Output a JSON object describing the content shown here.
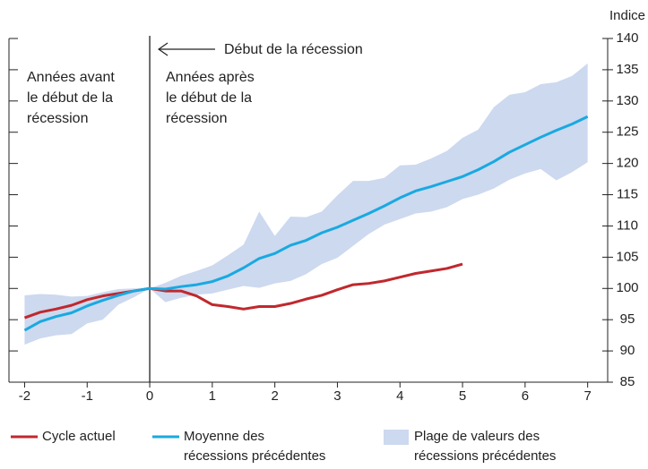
{
  "chart_data": {
    "type": "line",
    "y_label": "Indice",
    "annotations": [
      "Début de la récession",
      "Années avant\nle début de la\nrécession",
      "Années après\nle début de la\nrécession"
    ],
    "x": [
      -2,
      -1.75,
      -1.5,
      -1.25,
      -1,
      -0.75,
      -0.5,
      -0.25,
      0,
      0.25,
      0.5,
      0.75,
      1,
      1.25,
      1.5,
      1.75,
      2,
      2.25,
      2.5,
      2.75,
      3,
      3.25,
      3.5,
      3.75,
      4,
      4.25,
      4.5,
      4.75,
      5,
      5.25,
      5.5,
      5.75,
      6,
      6.25,
      6.5,
      6.75,
      7
    ],
    "series": [
      {
        "name": "Cycle actuel",
        "color": "#c0282d",
        "values": [
          95.3,
          96.2,
          96.7,
          97.3,
          98.2,
          98.8,
          99.2,
          99.6,
          100,
          99.6,
          99.6,
          98.8,
          97.4,
          97.1,
          96.7,
          97.1,
          97.1,
          97.6,
          98.3,
          98.9,
          99.8,
          100.6,
          100.8,
          101.2,
          101.8,
          102.4,
          102.8,
          103.2,
          103.9,
          null,
          null,
          null,
          null,
          null,
          null,
          null,
          null
        ]
      },
      {
        "name": "Moyenne des\nrécessions précédentes",
        "color": "#19a9e1",
        "values": [
          93.3,
          94.7,
          95.5,
          96.1,
          97.2,
          98.1,
          98.9,
          99.6,
          100,
          99.9,
          100.3,
          100.6,
          101.1,
          102.0,
          103.3,
          104.8,
          105.6,
          106.9,
          107.7,
          108.9,
          109.8,
          110.9,
          112.0,
          113.2,
          114.5,
          115.6,
          116.3,
          117.1,
          117.9,
          119.0,
          120.3,
          121.8,
          123.0,
          124.2,
          125.3,
          126.3,
          127.5
        ]
      },
      {
        "name": "Plage de valeurs des\nrécessions précédentes",
        "color": "#ccd9ef",
        "lower": [
          91,
          92,
          92.5,
          92.7,
          94.4,
          95,
          97.4,
          98.6,
          100,
          97.8,
          98.5,
          99,
          99.2,
          99.8,
          100.4,
          100.1,
          100.8,
          101.2,
          102.3,
          103.9,
          104.9,
          106.8,
          108.7,
          110.2,
          111.1,
          112.0,
          112.3,
          113.0,
          114.3,
          115.0,
          116.0,
          117.4,
          118.4,
          119.1,
          117.3,
          118.6,
          120.2
        ],
        "upper": [
          98.9,
          99.1,
          99.0,
          98.7,
          98.8,
          99.4,
          99.9,
          100.0,
          100,
          100.9,
          102,
          102.8,
          103.7,
          105.3,
          107,
          112.3,
          108.4,
          111.5,
          111.4,
          112.3,
          114.9,
          117.2,
          117.2,
          117.7,
          119.7,
          119.8,
          120.8,
          122.0,
          124.1,
          125.4,
          129.0,
          131.0,
          131.4,
          132.7,
          133.0,
          134.0,
          136.0
        ]
      }
    ],
    "xlim": [
      -2.25,
      7.32
    ],
    "xticks": [
      -2,
      -1,
      0,
      1,
      2,
      3,
      4,
      5,
      6,
      7
    ],
    "ylim": [
      85,
      140
    ],
    "yticks": [
      85,
      90,
      95,
      100,
      105,
      110,
      115,
      120,
      125,
      130,
      135,
      140
    ],
    "grid": false
  }
}
